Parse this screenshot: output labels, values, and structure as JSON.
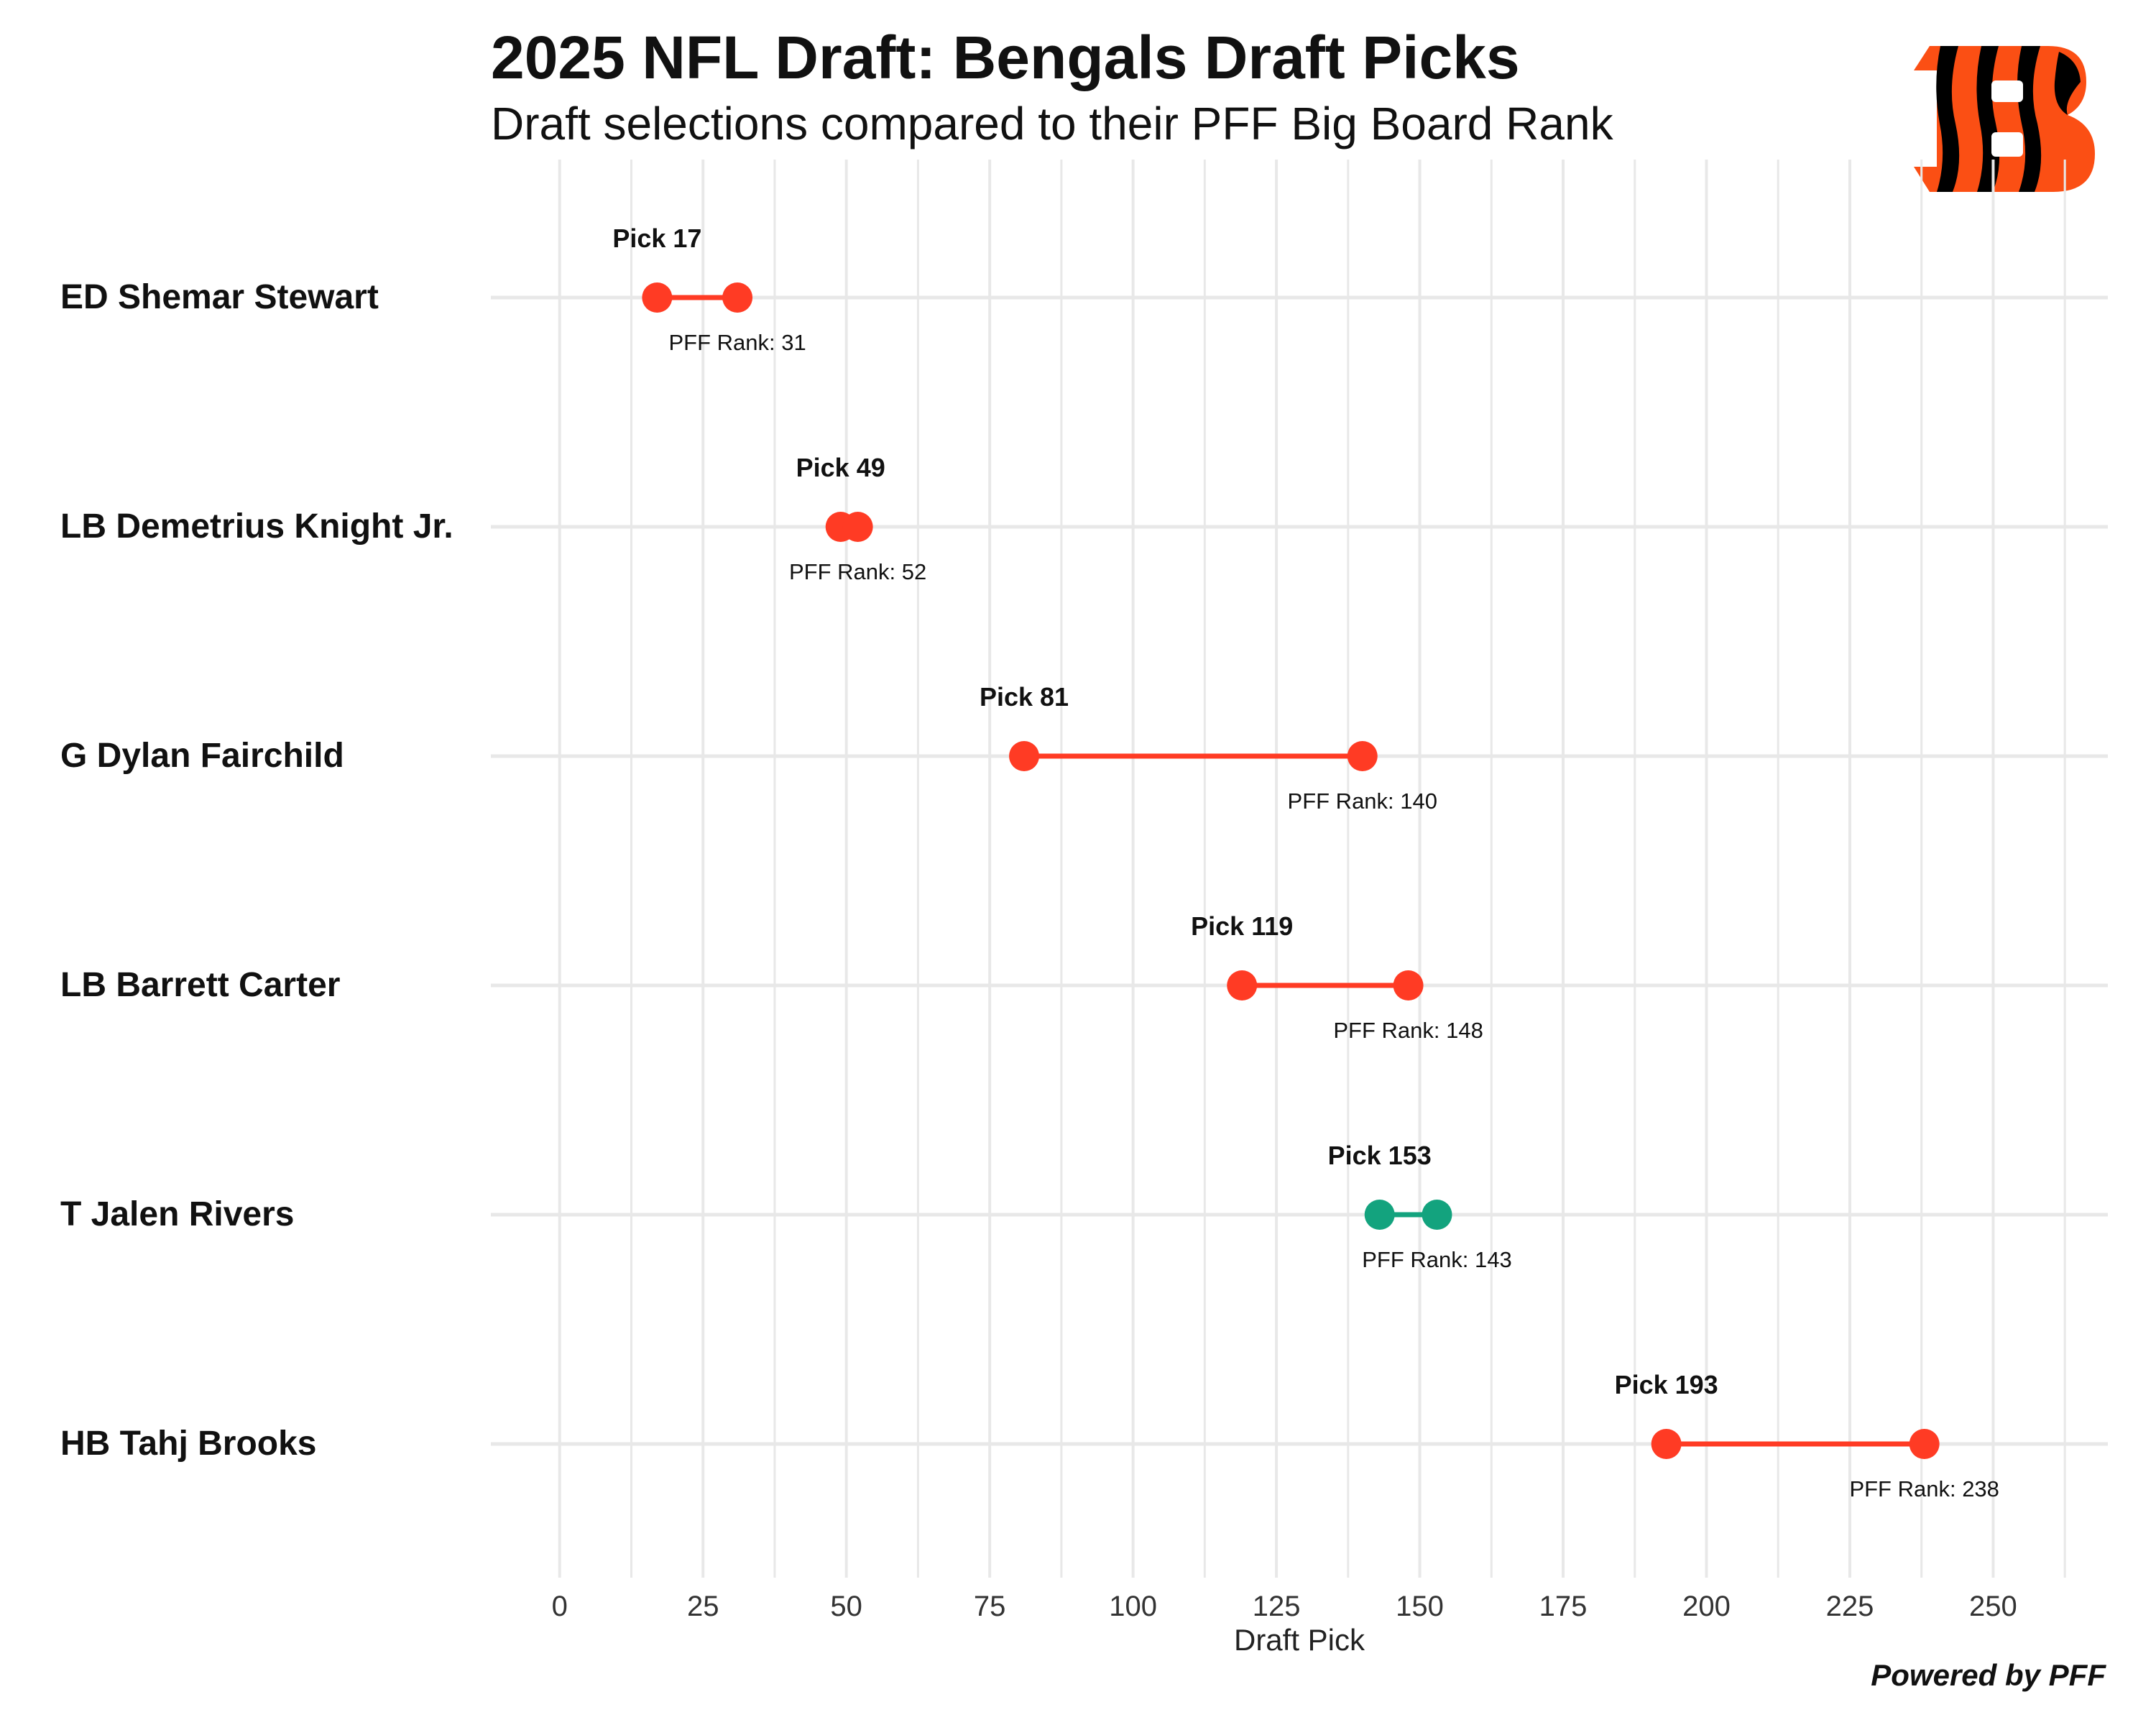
{
  "header": {
    "title": "2025 NFL Draft: Bengals Draft Picks",
    "subtitle": "Draft selections compared to their PFF Big Board Rank"
  },
  "footer": {
    "credit": "Powered by PFF"
  },
  "colors": {
    "later_than_rank": "#FF3B24",
    "earlier_than_rank": "#13A37E",
    "grid": "#E8E8E8",
    "logo_orange": "#FB4F14",
    "logo_black": "#000000"
  },
  "chart_data": {
    "type": "dumbbell",
    "title": "2025 NFL Draft: Bengals Draft Picks",
    "subtitle": "Draft selections compared to their PFF Big Board Rank",
    "xlabel": "Draft Pick",
    "ylabel": "",
    "xlim": [
      -12,
      270
    ],
    "xticks": [
      0,
      25,
      50,
      75,
      100,
      125,
      150,
      175,
      200,
      225,
      250
    ],
    "grid": true,
    "series": [
      {
        "name": "Draft Pick",
        "label_prefix": "Pick "
      },
      {
        "name": "PFF Big Board Rank",
        "label_prefix": "PFF Rank: "
      }
    ],
    "players": [
      {
        "label": "ED Shemar Stewart",
        "pick": 17,
        "pff_rank": 31
      },
      {
        "label": "LB Demetrius Knight Jr.",
        "pick": 49,
        "pff_rank": 52
      },
      {
        "label": "G Dylan Fairchild",
        "pick": 81,
        "pff_rank": 140
      },
      {
        "label": "LB Barrett Carter",
        "pick": 119,
        "pff_rank": 148
      },
      {
        "label": "T Jalen Rivers",
        "pick": 153,
        "pff_rank": 143
      },
      {
        "label": "HB Tahj Brooks",
        "pick": 193,
        "pff_rank": 238
      }
    ]
  }
}
